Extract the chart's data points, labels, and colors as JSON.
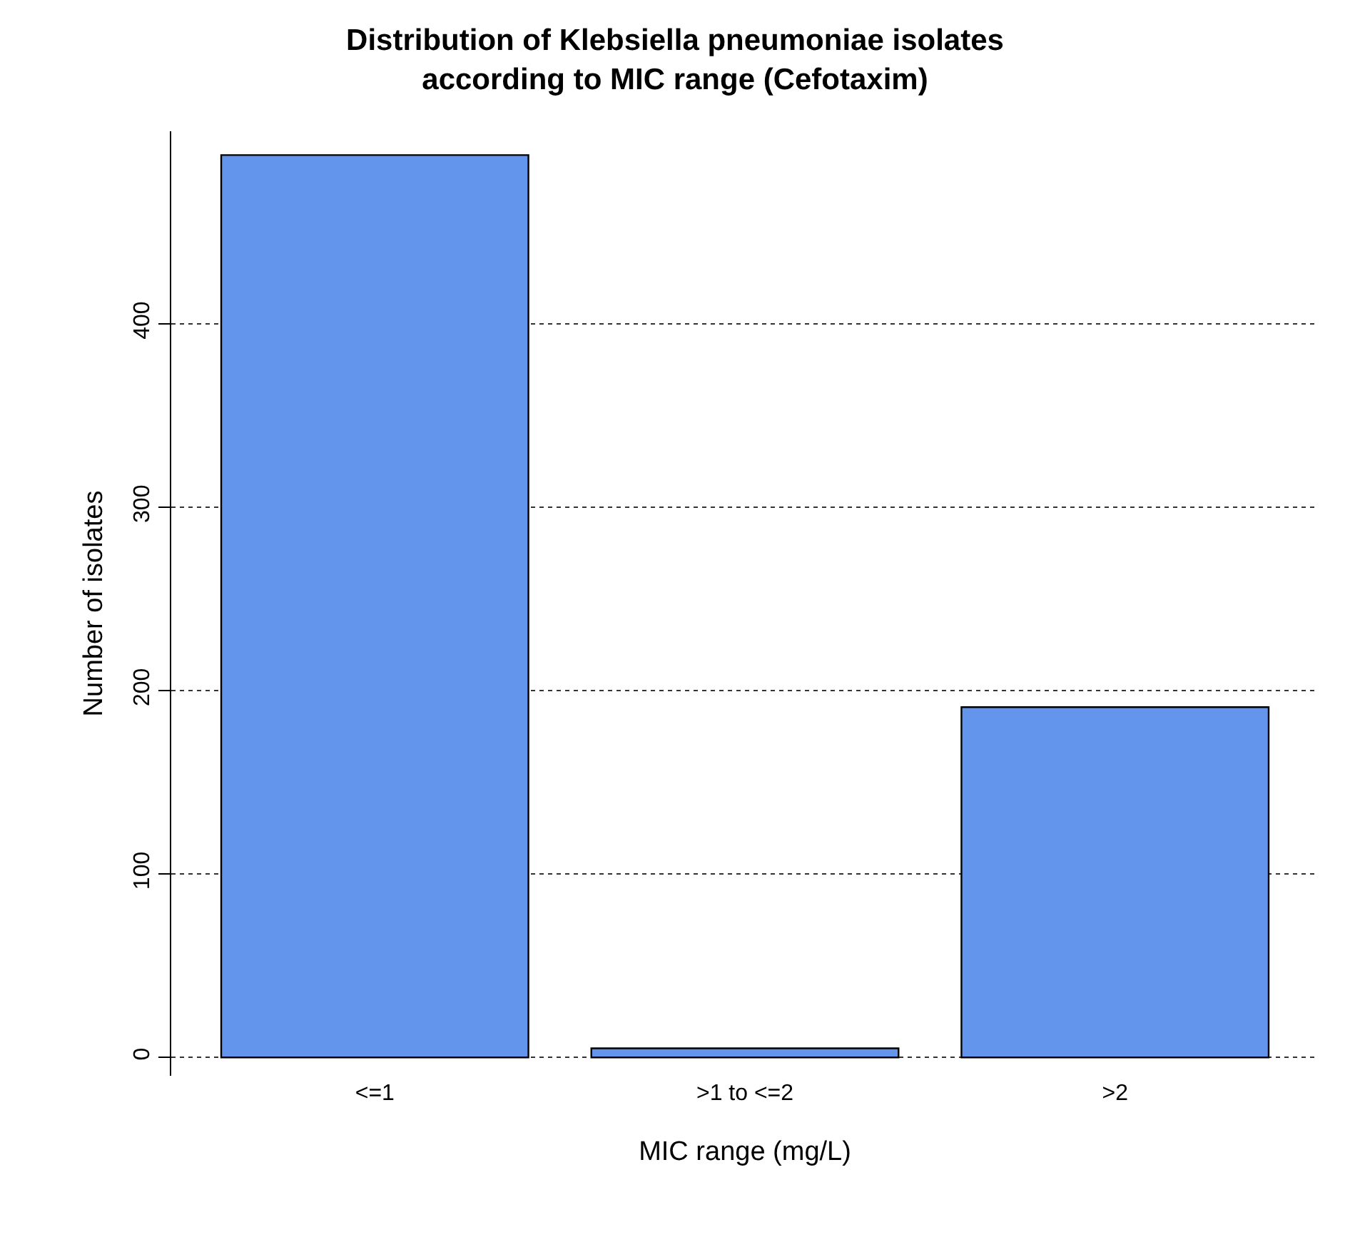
{
  "chart_data": {
    "type": "bar",
    "title": "Distribution of Klebsiella pneumoniae isolates\naccording to MIC range (Cefotaxim)",
    "xlabel": "MIC range (mg/L)",
    "ylabel": "Number of isolates",
    "categories": [
      "<=1",
      ">1 to <=2",
      ">2"
    ],
    "values": [
      492,
      5,
      191
    ],
    "color": "#6495ed",
    "ylim": [
      -10,
      505
    ],
    "yticks": [
      0,
      100,
      200,
      300,
      400
    ],
    "grid": "y"
  }
}
